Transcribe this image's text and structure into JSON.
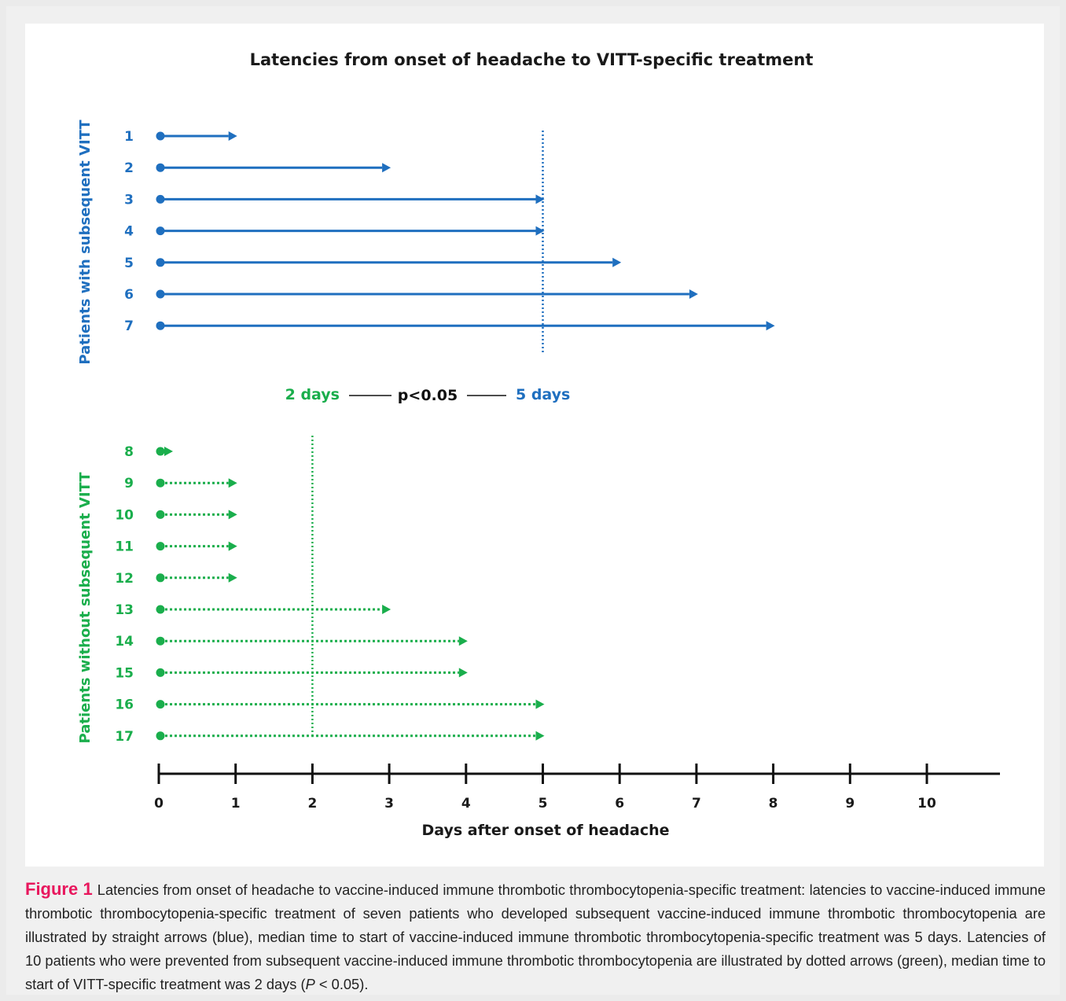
{
  "chart_data": {
    "type": "timeline-arrows",
    "title": "Latencies from onset of headache to VITT-specific treatment",
    "xlabel": "Days after onset of headache",
    "xlim": [
      0,
      10
    ],
    "x_ticks": [
      "0",
      "1",
      "2",
      "3",
      "4",
      "5",
      "6",
      "7",
      "8",
      "9",
      "10"
    ],
    "colors": {
      "vitt": "#1f6fbf",
      "non_vitt": "#1aae4c",
      "axis": "#111111"
    },
    "groups": [
      {
        "ylabel": "Patients with subsequent VITT",
        "line_style": "solid",
        "color": "#1f6fbf",
        "median_days": 5,
        "patients": [
          {
            "id": "1",
            "days": 1
          },
          {
            "id": "2",
            "days": 3
          },
          {
            "id": "3",
            "days": 5
          },
          {
            "id": "4",
            "days": 5
          },
          {
            "id": "5",
            "days": 6
          },
          {
            "id": "6",
            "days": 7
          },
          {
            "id": "7",
            "days": 8
          }
        ]
      },
      {
        "ylabel": "Patients without subsequent VITT",
        "line_style": "dotted",
        "color": "#1aae4c",
        "median_days": 2,
        "patients": [
          {
            "id": "8",
            "days": 0.1
          },
          {
            "id": "9",
            "days": 1
          },
          {
            "id": "10",
            "days": 1
          },
          {
            "id": "11",
            "days": 1
          },
          {
            "id": "12",
            "days": 1
          },
          {
            "id": "13",
            "days": 3
          },
          {
            "id": "14",
            "days": 4
          },
          {
            "id": "15",
            "days": 4
          },
          {
            "id": "16",
            "days": 5
          },
          {
            "id": "17",
            "days": 5
          }
        ]
      }
    ],
    "comparison": {
      "left_label": "2 days",
      "center_label": "p<0.05",
      "right_label": "5 days"
    }
  },
  "caption": {
    "label": "Figure 1",
    "text": "Latencies from onset of headache to vaccine-induced immune thrombotic thrombocytopenia-specific treatment: latencies to vaccine-induced immune thrombotic thrombocytopenia-specific treatment of seven patients who developed subsequent vaccine-induced immune thrombotic thrombocytopenia are illustrated by straight arrows (blue), median time to start of vaccine-induced immune thrombotic thrombocytopenia-specific treatment was 5 days. Latencies of 10 patients who were prevented from subsequent vaccine-induced immune thrombotic thrombocytopenia are illustrated by dotted arrows (green), median time to start of VITT-specific treatment was 2 days (",
    "p_symbol": "P",
    "p_value": " < 0.05)."
  }
}
